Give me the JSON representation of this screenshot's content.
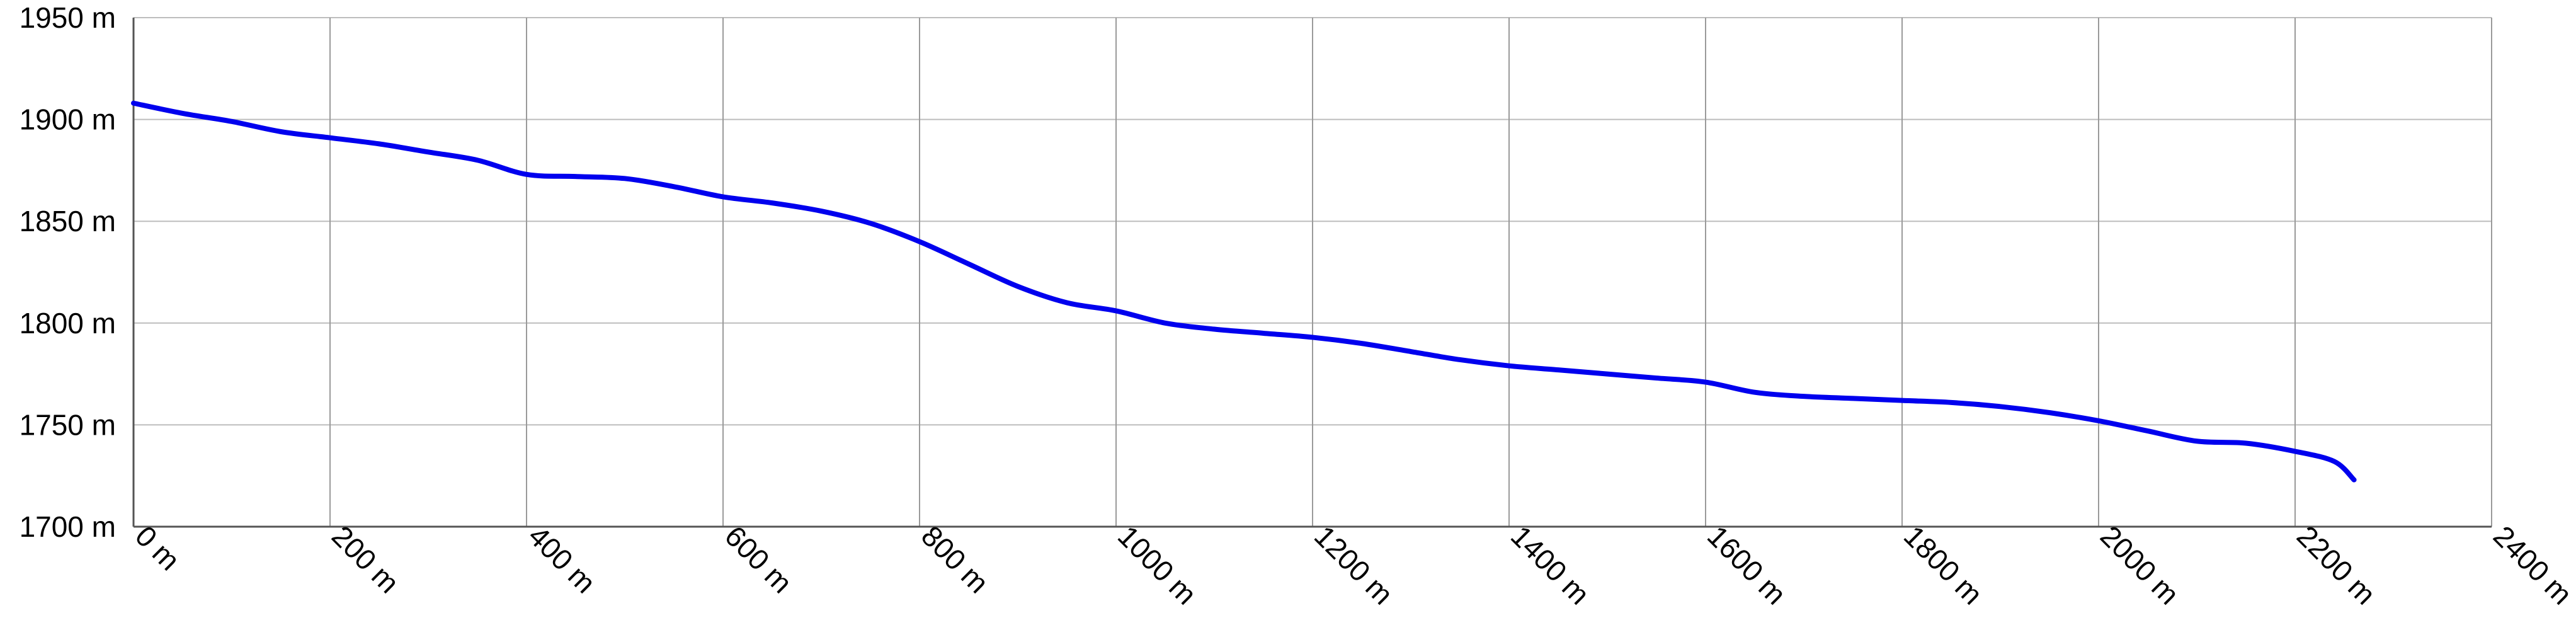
{
  "chart_data": {
    "type": "line",
    "title": "",
    "xlabel": "",
    "ylabel": "",
    "xlim": [
      0,
      2400
    ],
    "ylim": [
      1700,
      1950
    ],
    "grid": true,
    "x_ticks": [
      0,
      200,
      400,
      600,
      800,
      1000,
      1200,
      1400,
      1600,
      1800,
      2000,
      2200,
      2400
    ],
    "x_tick_labels": [
      "0 m",
      "200 m",
      "400 m",
      "600 m",
      "800 m",
      "1000 m",
      "1200 m",
      "1400 m",
      "1600 m",
      "1800 m",
      "2000 m",
      "2200 m",
      "2400 m"
    ],
    "y_ticks": [
      1700,
      1750,
      1800,
      1850,
      1900,
      1950
    ],
    "y_tick_labels": [
      "1700 m",
      "1750 m",
      "1800 m",
      "1850 m",
      "1900 m",
      "1950 m"
    ],
    "series": [
      {
        "color": "#0000ee",
        "x": [
          0,
          50,
          100,
          150,
          200,
          250,
          300,
          350,
          400,
          450,
          500,
          550,
          600,
          650,
          700,
          750,
          800,
          850,
          900,
          950,
          1000,
          1050,
          1100,
          1150,
          1200,
          1250,
          1300,
          1350,
          1400,
          1450,
          1500,
          1550,
          1600,
          1650,
          1700,
          1750,
          1800,
          1850,
          1900,
          1950,
          2000,
          2050,
          2100,
          2150,
          2200,
          2240,
          2260
        ],
        "y": [
          1908,
          1903,
          1899,
          1894,
          1891,
          1888,
          1884,
          1880,
          1873,
          1872,
          1871,
          1867,
          1862,
          1859,
          1855,
          1849,
          1840,
          1829,
          1818,
          1810,
          1806,
          1800,
          1797,
          1795,
          1793,
          1790,
          1786,
          1782,
          1779,
          1777,
          1775,
          1773,
          1771,
          1766,
          1764,
          1763,
          1762,
          1761,
          1759,
          1756,
          1752,
          1747,
          1742,
          1741,
          1737,
          1732,
          1723
        ]
      }
    ]
  }
}
